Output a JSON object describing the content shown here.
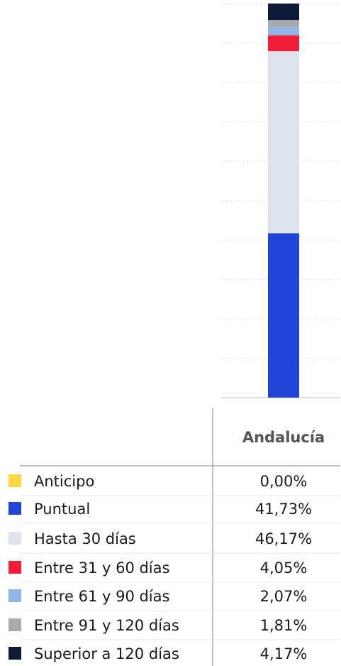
{
  "chart_data": {
    "type": "stacked_bar",
    "categories": [
      "Andalucía"
    ],
    "series": [
      {
        "name": "Anticipo",
        "color": "#ffd740",
        "values": [
          0.0
        ],
        "value_labels": [
          "0,00%"
        ]
      },
      {
        "name": "Puntual",
        "color": "#1f45d6",
        "values": [
          41.73
        ],
        "value_labels": [
          "41,73%"
        ]
      },
      {
        "name": "Hasta 30 días",
        "color": "#dde4ee",
        "values": [
          46.17
        ],
        "value_labels": [
          "46,17%"
        ]
      },
      {
        "name": "Entre 31 y 60 días",
        "color": "#f01e37",
        "values": [
          4.05
        ],
        "value_labels": [
          "4,05%"
        ]
      },
      {
        "name": "Entre 61 y 90 días",
        "color": "#8fb4e6",
        "values": [
          2.07
        ],
        "value_labels": [
          "2,07%"
        ]
      },
      {
        "name": "Entre 91 y 120 días",
        "color": "#a9aaad",
        "values": [
          1.81
        ],
        "value_labels": [
          "1,81%"
        ]
      },
      {
        "name": "Superior a 120 días",
        "color": "#0d1b38",
        "values": [
          4.17
        ],
        "value_labels": [
          "4,17%"
        ]
      }
    ],
    "ylim": [
      0,
      100
    ],
    "yticks": [
      0,
      10,
      20,
      30,
      40,
      50,
      60,
      70,
      80,
      90,
      100
    ],
    "grid": true
  }
}
